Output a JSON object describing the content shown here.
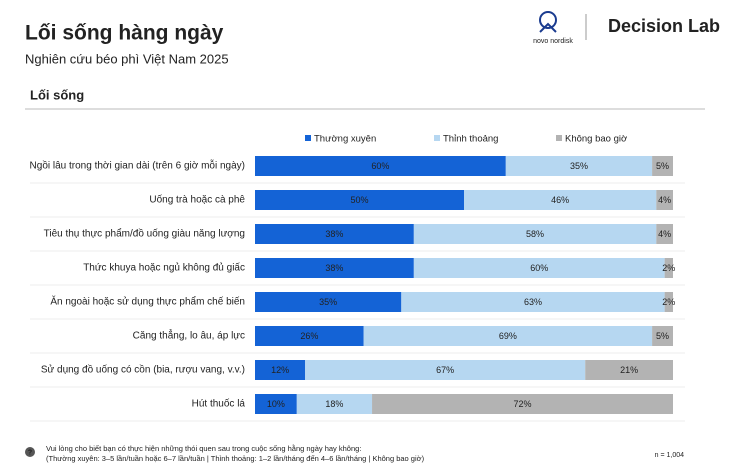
{
  "chart_data": {
    "type": "stacked-bar-horizontal",
    "title": "Lối sống hàng ngày",
    "subtitle": "Nghiên cứu béo phì Việt Nam 2025",
    "section": "Lối sống",
    "categories": [
      "Ngồi lâu trong thời gian dài (trên 6 giờ mỗi ngày)",
      "Uống trà hoặc cà phê",
      "Tiêu thụ thực phẩm/đồ uống giàu năng lượng",
      "Thức khuya hoặc ngủ không đủ giấc",
      "Ăn ngoài hoặc sử dụng thực phẩm chế biến",
      "Căng thẳng, lo âu, áp lực",
      "Sử dụng đồ uống có cồn (bia, rượu vang, v.v.)",
      "Hút thuốc lá"
    ],
    "xlim": [
      0,
      100
    ],
    "series": [
      {
        "name": "Thường xuyên",
        "color": "#1463d6",
        "values": [
          60,
          50,
          38,
          38,
          35,
          26,
          12,
          10
        ],
        "value_labels": [
          "60%",
          "50%",
          "38%",
          "38%",
          "35%",
          "26%",
          "12%",
          "10%"
        ]
      },
      {
        "name": "Thỉnh thoảng",
        "color": "#b6d7f1",
        "values": [
          35,
          46,
          58,
          60,
          63,
          69,
          67,
          18
        ],
        "value_labels": [
          "35%",
          "46%",
          "58%",
          "60%",
          "63%",
          "69%",
          "67%",
          "18%"
        ]
      },
      {
        "name": "Không bao giờ",
        "color": "#b3b3b3",
        "values": [
          5,
          4,
          4,
          2,
          2,
          5,
          21,
          72
        ],
        "value_labels": [
          "5%",
          "4%",
          "4%",
          "2%",
          "2%",
          "5%",
          "21%",
          "72%"
        ]
      }
    ]
  },
  "page": {
    "logo_left": "novo nordisk",
    "logo_right": "Decision Lab",
    "footnote": [
      "Vui lòng cho biết bạn có thực hiện những thói quen sau trong cuộc sống hằng ngày hay không:",
      "(Thường xuyên: 3–5 lần/tuần hoặc 6–7 lần/tuần | Thỉnh thoảng: 1–2 lần/tháng đến 4–6 lần/tháng | Không bao giờ)"
    ],
    "sample": "n = 1,004"
  }
}
